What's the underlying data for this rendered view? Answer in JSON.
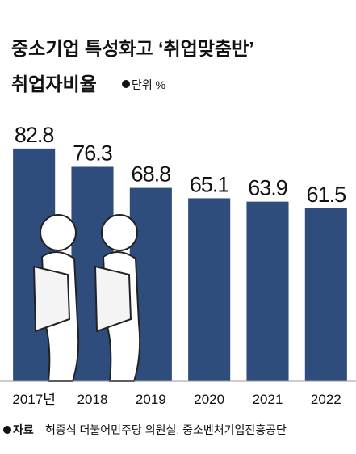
{
  "chart_data": {
    "type": "bar",
    "title": [
      "중소기업 특성화고 ‘취업맞춤반’",
      "취업자비율"
    ],
    "unit": "단위 %",
    "categories": [
      "2017년",
      "2018",
      "2019",
      "2020",
      "2021",
      "2022"
    ],
    "values": [
      82.8,
      76.3,
      68.8,
      65.1,
      63.9,
      61.5
    ],
    "color": "#2e4d7d",
    "ylim": [
      0,
      100
    ],
    "source_label": "자료",
    "source": "허종식 더불어민주당 의원실, 중소벤처기업진흥공단"
  }
}
